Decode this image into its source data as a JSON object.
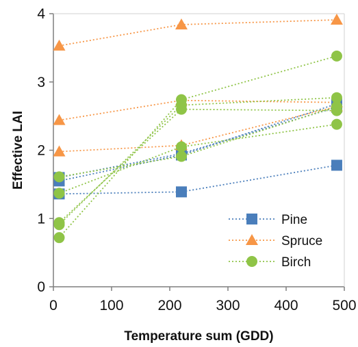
{
  "chart_data": {
    "type": "scatter",
    "title": "",
    "xlabel": "Temperature sum (GDD)",
    "ylabel": "Effective LAI",
    "xlim": [
      0,
      500
    ],
    "ylim": [
      0,
      4
    ],
    "xticks": [
      0,
      100,
      200,
      300,
      400,
      500
    ],
    "yticks": [
      0,
      1,
      2,
      3,
      4
    ],
    "grid": false,
    "legend_position": "bottom-right",
    "line_style": "dotted",
    "series": [
      {
        "name": "Pine",
        "group": "Pine",
        "marker": "square",
        "color": "#4a7ebb",
        "x": [
          10,
          220,
          487
        ],
        "y": [
          1.36,
          1.39,
          1.78
        ]
      },
      {
        "name": "Pine",
        "group": "Pine",
        "marker": "square",
        "color": "#4a7ebb",
        "x": [
          10,
          220,
          487
        ],
        "y": [
          1.55,
          1.93,
          2.68
        ]
      },
      {
        "name": "Pine",
        "group": "Pine",
        "marker": "square",
        "color": "#4a7ebb",
        "x": [
          10,
          220,
          487
        ],
        "y": [
          1.6,
          1.95,
          2.63
        ]
      },
      {
        "name": "Spruce",
        "group": "Spruce",
        "marker": "triangle",
        "color": "#f79646",
        "x": [
          10,
          220,
          487
        ],
        "y": [
          3.53,
          3.84,
          3.91
        ]
      },
      {
        "name": "Spruce",
        "group": "Spruce",
        "marker": "triangle",
        "color": "#f79646",
        "x": [
          10,
          220,
          487
        ],
        "y": [
          2.44,
          2.73,
          2.7
        ]
      },
      {
        "name": "Spruce",
        "group": "Spruce",
        "marker": "triangle",
        "color": "#f79646",
        "x": [
          10,
          220,
          487
        ],
        "y": [
          1.98,
          2.07,
          2.64
        ]
      },
      {
        "name": "Birch",
        "group": "Birch",
        "marker": "circle",
        "color": "#8fc447",
        "x": [
          10,
          220,
          487
        ],
        "y": [
          0.72,
          2.74,
          3.38
        ]
      },
      {
        "name": "Birch",
        "group": "Birch",
        "marker": "circle",
        "color": "#8fc447",
        "x": [
          10,
          220,
          487
        ],
        "y": [
          0.91,
          2.66,
          2.77
        ]
      },
      {
        "name": "Birch",
        "group": "Birch",
        "marker": "circle",
        "color": "#8fc447",
        "x": [
          10,
          220,
          487
        ],
        "y": [
          0.94,
          2.6,
          2.58
        ]
      },
      {
        "name": "Birch",
        "group": "Birch",
        "marker": "circle",
        "color": "#8fc447",
        "x": [
          10,
          220,
          487
        ],
        "y": [
          1.37,
          2.05,
          2.38
        ]
      },
      {
        "name": "Birch",
        "group": "Birch",
        "marker": "circle",
        "color": "#8fc447",
        "x": [
          10,
          220,
          487
        ],
        "y": [
          1.61,
          1.91,
          2.64
        ]
      }
    ],
    "legend": [
      {
        "label": "Pine",
        "marker": "square",
        "color": "#4a7ebb"
      },
      {
        "label": "Spruce",
        "marker": "triangle",
        "color": "#f79646"
      },
      {
        "label": "Birch",
        "marker": "circle",
        "color": "#8fc447"
      }
    ]
  }
}
